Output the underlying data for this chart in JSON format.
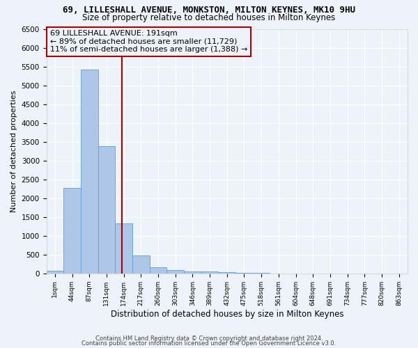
{
  "title": "69, LILLESHALL AVENUE, MONKSTON, MILTON KEYNES, MK10 9HU",
  "subtitle": "Size of property relative to detached houses in Milton Keynes",
  "xlabel": "Distribution of detached houses by size in Milton Keynes",
  "ylabel": "Number of detached properties",
  "bin_labels": [
    "1sqm",
    "44sqm",
    "87sqm",
    "131sqm",
    "174sqm",
    "217sqm",
    "260sqm",
    "303sqm",
    "346sqm",
    "389sqm",
    "432sqm",
    "475sqm",
    "518sqm",
    "561sqm",
    "604sqm",
    "648sqm",
    "691sqm",
    "734sqm",
    "777sqm",
    "820sqm",
    "863sqm"
  ],
  "bar_heights": [
    75,
    2280,
    5420,
    3380,
    1320,
    475,
    160,
    90,
    55,
    45,
    35,
    20,
    10,
    5,
    5,
    3,
    2,
    2,
    1,
    1,
    0
  ],
  "bar_color": "#aec6e8",
  "bar_edgecolor": "#5a9fd4",
  "bar_width": 1.0,
  "ylim": [
    0,
    6500
  ],
  "yticks": [
    0,
    500,
    1000,
    1500,
    2000,
    2500,
    3000,
    3500,
    4000,
    4500,
    5000,
    5500,
    6000,
    6500
  ],
  "vline_color": "#aa0000",
  "annotation_text": "69 LILLESHALL AVENUE: 191sqm\n← 89% of detached houses are smaller (11,729)\n11% of semi-detached houses are larger (1,388) →",
  "footer1": "Contains HM Land Registry data © Crown copyright and database right 2024.",
  "footer2": "Contains public sector information licensed under the Open Government Licence v3.0.",
  "bg_color": "#eef2f9",
  "grid_color": "#ffffff",
  "title_fontsize": 9,
  "subtitle_fontsize": 8.5,
  "ylabel_fontsize": 8,
  "xlabel_fontsize": 8.5,
  "annotation_fontsize": 8,
  "footer_fontsize": 6
}
